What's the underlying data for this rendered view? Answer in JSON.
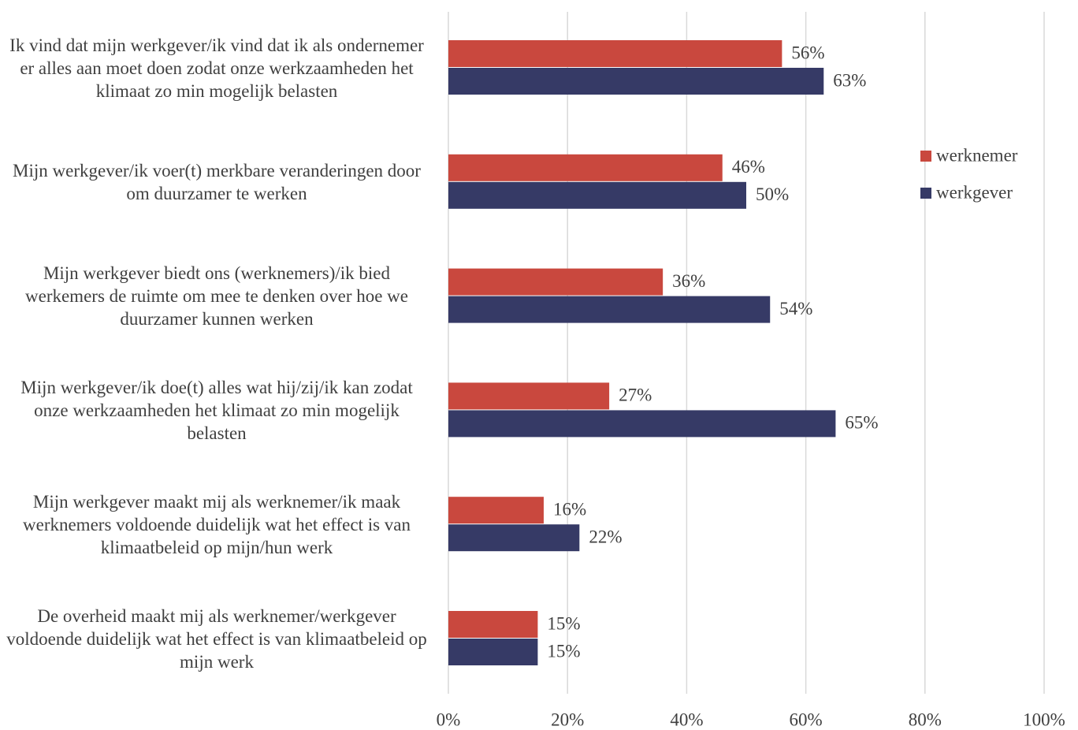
{
  "chart_data": {
    "type": "barh",
    "categories": [
      "Ik vind dat mijn werkgever/ik vind dat ik als ondernemer er alles aan moet doen zodat onze werkzaamheden het klimaat zo min mogelijk belasten",
      "Mijn werkgever/ik voer(t) merkbare veranderingen door om duurzamer te werken",
      "Mijn werkgever biedt ons (werknemers)/ik bied werkemers de ruimte om mee te denken over hoe we duurzamer kunnen werken",
      "Mijn werkgever/ik doe(t) alles wat hij/zij/ik kan zodat onze werkzaamheden het klimaat zo min mogelijk belasten",
      "Mijn werkgever maakt mij als werknemer/ik maak werknemers voldoende duidelijk wat het effect is van klimaatbeleid op mijn/hun werk",
      "De overheid maakt mij als werknemer/werkgever voldoende duidelijk wat het effect is van klimaatbeleid op mijn werk"
    ],
    "series": [
      {
        "name": "werknemer",
        "color": "#c9483e",
        "values": [
          56,
          46,
          36,
          27,
          16,
          15
        ],
        "value_labels": [
          "56%",
          "46%",
          "36%",
          "27%",
          "16%",
          "15%"
        ]
      },
      {
        "name": "werkgever",
        "color": "#363a66",
        "values": [
          63,
          50,
          54,
          65,
          22,
          15
        ],
        "value_labels": [
          "63%",
          "50%",
          "54%",
          "65%",
          "22%",
          "15%"
        ]
      }
    ],
    "xlim": [
      0,
      100
    ],
    "xticks": [
      {
        "value": 0,
        "label": "0%"
      },
      {
        "value": 20,
        "label": "20%"
      },
      {
        "value": 40,
        "label": "40%"
      },
      {
        "value": 60,
        "label": "60%"
      },
      {
        "value": 80,
        "label": "80%"
      },
      {
        "value": 100,
        "label": "100%"
      }
    ],
    "grid": true,
    "legend": "right"
  }
}
